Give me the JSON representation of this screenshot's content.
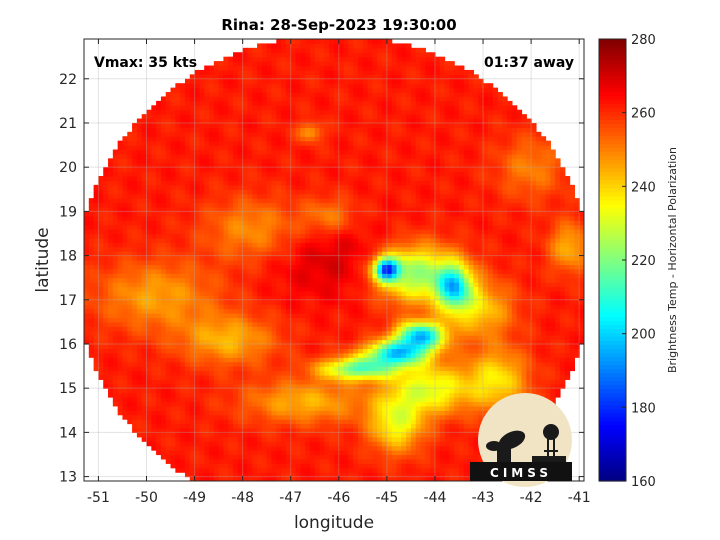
{
  "chart_data": {
    "type": "heatmap",
    "title": "Rina: 28-Sep-2023 19:30:00",
    "xlabel": "longitude",
    "ylabel": "latitude",
    "xlim": [
      -51.3,
      -40.9
    ],
    "ylim": [
      12.9,
      22.9
    ],
    "xticks": [
      -51,
      -50,
      -49,
      -48,
      -47,
      -46,
      -45,
      -44,
      -43,
      -42,
      -41
    ],
    "yticks": [
      13,
      14,
      15,
      16,
      17,
      18,
      19,
      20,
      21,
      22
    ],
    "grid": true,
    "annotations": {
      "left": "Vmax: 35 kts",
      "right": "01:37 away"
    },
    "colorbar": {
      "label": "Brightness Temp - Horizontal Polarization",
      "range": [
        160,
        280
      ],
      "ticks": [
        160,
        180,
        200,
        220,
        240,
        260,
        280
      ],
      "colormap": "jet"
    },
    "swath": {
      "center": [
        -46.1,
        17.5
      ],
      "radius_lon": 5.35,
      "radius_lat": 5.5,
      "background_value": 262
    },
    "features": [
      {
        "lon": -46.1,
        "lat": 17.9,
        "value": 270,
        "sx": 0.9,
        "sy": 0.6,
        "desc": "eye"
      },
      {
        "lon": -45.0,
        "lat": 17.7,
        "value": 196,
        "sx": 0.18,
        "sy": 0.18
      },
      {
        "lon": -44.4,
        "lat": 17.6,
        "value": 222,
        "sx": 0.6,
        "sy": 0.45
      },
      {
        "lon": -43.6,
        "lat": 17.3,
        "value": 214,
        "sx": 0.25,
        "sy": 0.35
      },
      {
        "lon": -44.3,
        "lat": 16.2,
        "value": 200,
        "sx": 0.35,
        "sy": 0.22
      },
      {
        "lon": -44.8,
        "lat": 15.8,
        "value": 205,
        "sx": 0.45,
        "sy": 0.2
      },
      {
        "lon": -45.6,
        "lat": 15.45,
        "value": 218,
        "sx": 0.55,
        "sy": 0.18
      },
      {
        "lon": -44.1,
        "lat": 15.0,
        "value": 232,
        "sx": 0.6,
        "sy": 0.4
      },
      {
        "lon": -44.8,
        "lat": 14.2,
        "value": 234,
        "sx": 0.4,
        "sy": 0.45
      },
      {
        "lon": -42.7,
        "lat": 15.2,
        "value": 238,
        "sx": 0.45,
        "sy": 0.5
      },
      {
        "lon": -43.1,
        "lat": 16.8,
        "value": 240,
        "sx": 0.5,
        "sy": 0.45
      },
      {
        "lon": -46.7,
        "lat": 14.7,
        "value": 244,
        "sx": 0.9,
        "sy": 0.35
      },
      {
        "lon": -48.3,
        "lat": 16.1,
        "value": 244,
        "sx": 0.7,
        "sy": 0.4
      },
      {
        "lon": -49.8,
        "lat": 17.1,
        "value": 246,
        "sx": 0.9,
        "sy": 0.55
      },
      {
        "lon": -47.8,
        "lat": 18.6,
        "value": 248,
        "sx": 0.7,
        "sy": 0.5
      },
      {
        "lon": -46.6,
        "lat": 20.8,
        "value": 246,
        "sx": 0.18,
        "sy": 0.15
      },
      {
        "lon": -41.2,
        "lat": 18.2,
        "value": 244,
        "sx": 0.3,
        "sy": 0.4
      },
      {
        "lon": -42.0,
        "lat": 20.0,
        "value": 250,
        "sx": 0.5,
        "sy": 0.5
      },
      {
        "lon": -46.2,
        "lat": 18.9,
        "value": 250,
        "sx": 0.4,
        "sy": 0.3
      }
    ]
  },
  "logo": {
    "text": "CIMSS"
  }
}
